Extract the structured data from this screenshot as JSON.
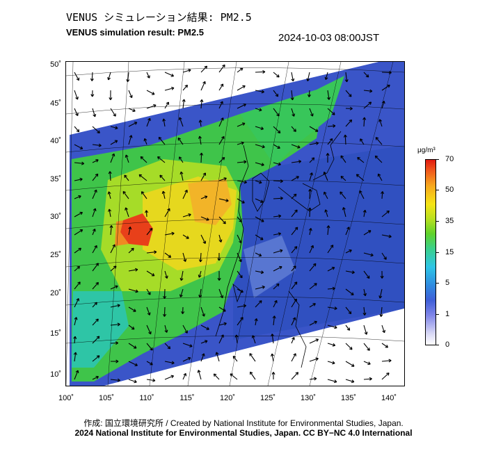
{
  "header": {
    "title_jp": "VENUS シミュレーション結果: PM2.5",
    "title_en": "VENUS simulation result: PM2.5",
    "datetime": "2024-10-03 08:00JST"
  },
  "map": {
    "lat_labels": [
      "50˚",
      "45˚",
      "40˚",
      "35˚",
      "30˚",
      "25˚",
      "20˚",
      "15˚",
      "10˚"
    ],
    "lon_labels": [
      "100˚",
      "105˚",
      "110˚",
      "115˚",
      "120˚",
      "125˚",
      "130˚",
      "135˚",
      "140˚"
    ]
  },
  "colorbar": {
    "unit": "μg/m³",
    "labels": [
      "70",
      "50",
      "35",
      "15",
      "5",
      "1",
      "0"
    ],
    "colors": [
      "#ffffff",
      "#7f85e8",
      "#2f8ae0",
      "#3ad08a",
      "#b8e020",
      "#f5e416",
      "#f05a1c",
      "#e01a10"
    ]
  },
  "footer": {
    "credit_jp": "作成: 国立環境研究所 / Created by National Institute for Environmental Studies, Japan.",
    "license": "2024 National Institute for Environmental Studies, Japan. CC BY−NC 4.0 International"
  }
}
